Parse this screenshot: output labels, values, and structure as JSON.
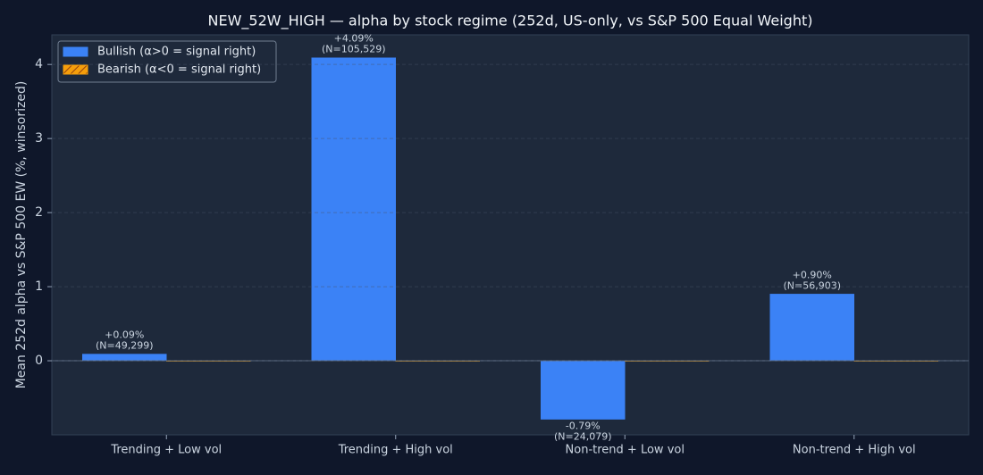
{
  "chart_data": {
    "type": "bar",
    "title": "NEW_52W_HIGH — alpha by stock regime (252d, US-only, vs S&P 500 Equal Weight)",
    "y_label": "Mean 252d alpha vs S&P 500 EW (%, winsorized)",
    "categories": [
      "Trending + Low vol",
      "Trending + High vol",
      "Non-trend + Low vol",
      "Non-trend + High vol"
    ],
    "series": [
      {
        "name": "Bullish (α>0 = signal right)",
        "color": "#3b82f6",
        "values": [
          0.09,
          4.09,
          -0.79,
          0.9
        ],
        "value_labels": [
          "+0.09%",
          "+4.09%",
          "-0.79%",
          "+0.90%"
        ],
        "n_labels": [
          "(N=49,299)",
          "(N=105,529)",
          "(N=24,079)",
          "(N=56,903)"
        ]
      },
      {
        "name": "Bearish (α<0 = signal right)",
        "color": "#f59e0b",
        "hatch": true,
        "values": [
          0,
          0,
          0,
          0
        ]
      }
    ],
    "ylim": [
      -1.0,
      4.4
    ],
    "yticks": [
      0,
      1,
      2,
      3,
      4
    ],
    "grid": true,
    "legend": "upper left"
  }
}
